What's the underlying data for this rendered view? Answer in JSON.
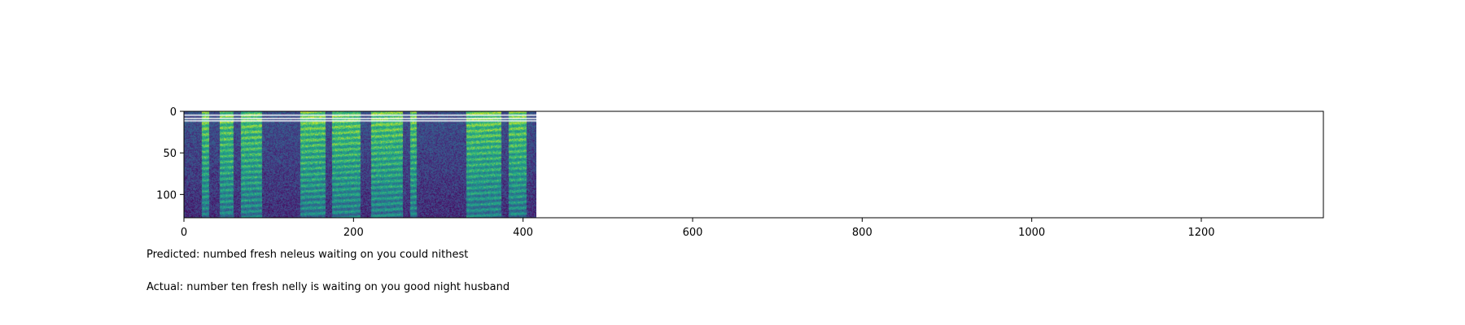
{
  "chart_data": {
    "type": "heatmap",
    "title": "",
    "xlabel": "",
    "ylabel": "",
    "xlim": [
      0,
      1344
    ],
    "ylim": [
      128,
      0
    ],
    "x_ticks": [
      0,
      200,
      400,
      600,
      800,
      1000,
      1200
    ],
    "y_ticks": [
      0,
      50,
      100
    ],
    "data_extent_x": [
      0,
      416
    ],
    "colormap": "viridis",
    "grid": false
  },
  "captions": {
    "predicted": "Predicted: numbed fresh neleus waiting on you could nithest",
    "actual": "Actual: number ten fresh nelly is waiting on you good night husband"
  }
}
